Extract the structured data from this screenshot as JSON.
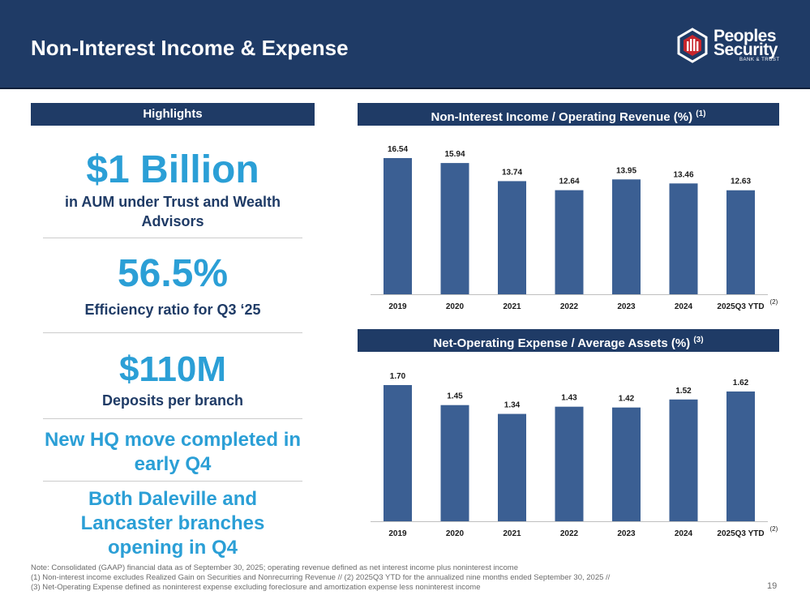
{
  "header": {
    "title": "Non-Interest Income & Expense"
  },
  "logo": {
    "line1": "Peoples",
    "line2": "Security",
    "sub": "BANK & TRUST",
    "icon": "logo-hexagon-icon"
  },
  "highlights": {
    "title": "Highlights",
    "items": [
      {
        "value": "$1 Billion",
        "caption": "in AUM under Trust and Wealth Advisors"
      },
      {
        "value": "56.5%",
        "caption": "Efficiency ratio for Q3 ‘25"
      },
      {
        "value": "$110M",
        "caption": "Deposits per branch"
      }
    ],
    "notes": [
      "New HQ move completed in early Q4",
      "Both Daleville and Lancaster branches opening in Q4"
    ]
  },
  "chart_data": [
    {
      "type": "bar",
      "title": "Non-Interest Income / Operating Revenue (%)",
      "title_note": "(1)",
      "categories": [
        "2019",
        "2020",
        "2021",
        "2022",
        "2023",
        "2024",
        "2025Q3 YTD"
      ],
      "last_category_note": "(2)",
      "values": [
        16.54,
        15.94,
        13.74,
        12.64,
        13.95,
        13.46,
        12.63
      ],
      "value_labels": [
        "16.54",
        "15.94",
        "13.74",
        "12.64",
        "13.95",
        "13.46",
        "12.63"
      ],
      "ylim": [
        0,
        16.54
      ],
      "color": "#3b5f93",
      "xlabel": "",
      "ylabel": ""
    },
    {
      "type": "bar",
      "title": "Net-Operating Expense / Average Assets (%)",
      "title_note": "(3)",
      "categories": [
        "2019",
        "2020",
        "2021",
        "2022",
        "2023",
        "2024",
        "2025Q3 YTD"
      ],
      "last_category_note": "(2)",
      "values": [
        1.7,
        1.45,
        1.34,
        1.43,
        1.42,
        1.52,
        1.62
      ],
      "value_labels": [
        "1.70",
        "1.45",
        "1.34",
        "1.43",
        "1.42",
        "1.52",
        "1.62"
      ],
      "ylim": [
        0,
        1.7
      ],
      "color": "#3b5f93",
      "xlabel": "",
      "ylabel": ""
    }
  ],
  "footnotes": [
    "Note: Consolidated (GAAP) financial data as of September 30, 2025; operating revenue defined as net interest income plus noninterest income",
    "(1) Non-interest income excludes Realized Gain on Securities and Nonrecurring Revenue // (2) 2025Q3 YTD for the annualized nine months ended September 30, 2025 //",
    "(3) Net-Operating Expense defined as noninterest expense excluding foreclosure and amortization expense less noninterest income"
  ],
  "page_number": "19",
  "colors": {
    "navy": "#1f3b66",
    "accent": "#2b9fd6",
    "bar": "#3b5f93"
  }
}
